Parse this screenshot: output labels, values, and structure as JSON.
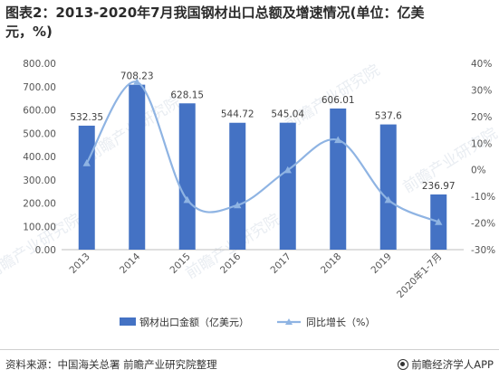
{
  "header": {
    "title_line1": "图表2：2013-2020年7月我国钢材出口总额及增速情况(单位：亿美",
    "title_line2": "元，%)"
  },
  "footer": {
    "source": "资料来源：中国海关总署 前瞻产业研究院整理",
    "brand": "前瞻经济学人APP",
    "brand_icon": "qianzhan-logo-icon"
  },
  "watermark": "前瞻产业研究院",
  "colors": {
    "bar": "#4472c4",
    "line": "#8fb4e3",
    "axis_text": "#555555",
    "data_label": "#404040"
  },
  "chart_data": {
    "type": "bar",
    "title": "",
    "categories": [
      "2013",
      "2014",
      "2015",
      "2016",
      "2017",
      "2018",
      "2019",
      "2020年1-7月"
    ],
    "series": [
      {
        "name": "钢材出口金额（亿美元）",
        "type": "bar",
        "axis": "left",
        "values": [
          532.35,
          708.23,
          628.15,
          544.72,
          545.04,
          606.01,
          537.6,
          236.97
        ],
        "labels": [
          "532.35",
          "708.23",
          "628.15",
          "544.72",
          "545.04",
          "606.01",
          "537.6",
          "236.97"
        ]
      },
      {
        "name": "同比增长（%）",
        "type": "line",
        "axis": "right",
        "smooth": true,
        "marker": "triangle",
        "values": [
          2.5,
          33,
          -11.3,
          -13.3,
          -0.1,
          11.2,
          -11.3,
          -19.6
        ]
      }
    ],
    "y_left": {
      "ylim": [
        0,
        800
      ],
      "ticks": [
        "0.00",
        "100.00",
        "200.00",
        "300.00",
        "400.00",
        "500.00",
        "600.00",
        "700.00",
        "800.00"
      ]
    },
    "y_right": {
      "ylim": [
        -30,
        40
      ],
      "ticks": [
        "-30%",
        "-20%",
        "-10%",
        "0%",
        "10%",
        "20%",
        "30%",
        "40%"
      ]
    },
    "grid": false,
    "legend_position": "bottom"
  }
}
